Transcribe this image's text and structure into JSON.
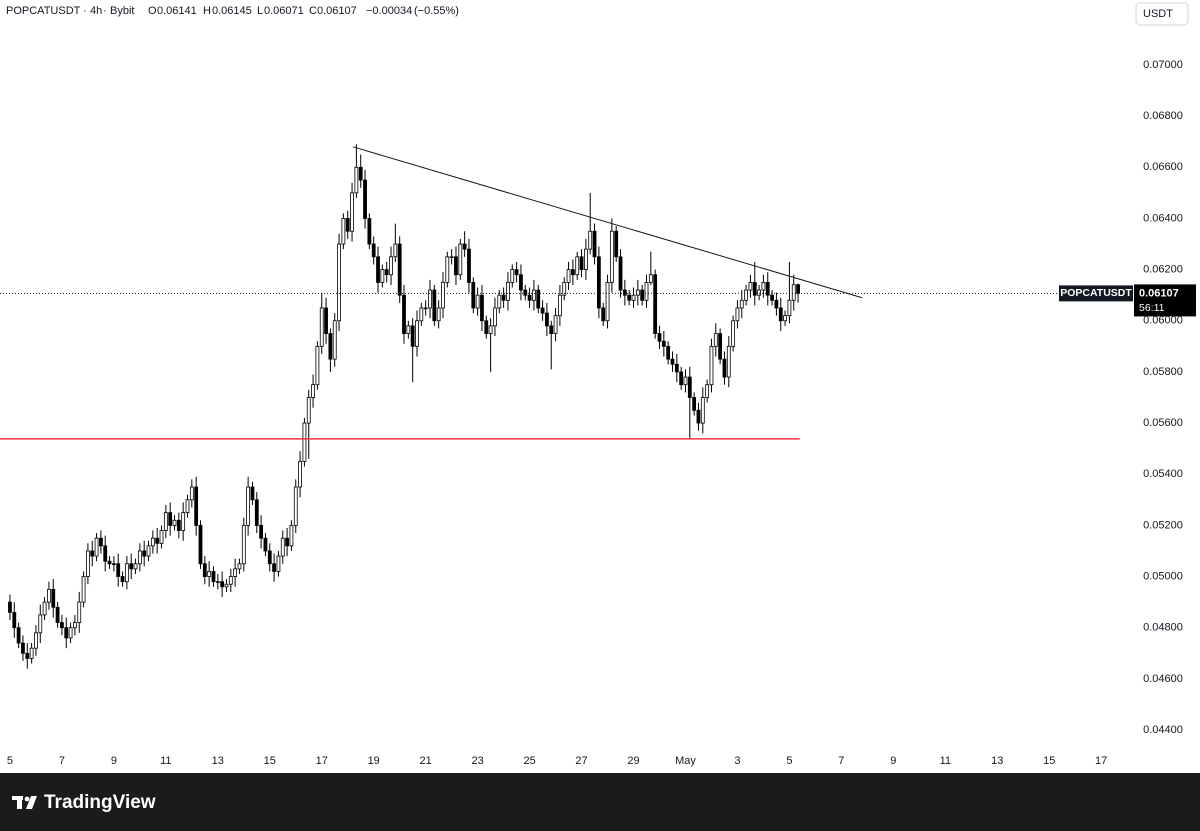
{
  "header": {
    "symbol": "POPCATUSDT",
    "interval": "4h",
    "exchange": "Bybit",
    "open_label": "O",
    "high_label": "H",
    "low_label": "L",
    "close_label": "C",
    "change": "−0.00034",
    "change_pct": "(−0.55%)",
    "currency": "USDT",
    "countdown": "56:11",
    "brand": "TradingView"
  },
  "chart_data": {
    "type": "candlestick",
    "title": "POPCATUSDT",
    "up_color": "#ffffff",
    "down_color": "#000000",
    "border_color": "#000000",
    "open": [
      0.049,
      0.0486,
      0.048,
      0.0474,
      0.047,
      0.0468,
      0.0472,
      0.0478,
      0.0485,
      0.049,
      0.0495,
      0.0488,
      0.0482,
      0.048,
      0.0476,
      0.048,
      0.0482,
      0.049,
      0.05,
      0.051,
      0.0508,
      0.0515,
      0.0512,
      0.0506,
      0.0505,
      0.0505,
      0.05,
      0.0498,
      0.0505,
      0.0503,
      0.0505,
      0.051,
      0.0508,
      0.0512,
      0.0515,
      0.0513,
      0.0518,
      0.0525,
      0.052,
      0.0522,
      0.0518,
      0.0525,
      0.053,
      0.0535,
      0.052,
      0.0505,
      0.05,
      0.0502,
      0.0498,
      0.0498,
      0.0496,
      0.0497,
      0.05,
      0.0503,
      0.0505,
      0.052,
      0.0535,
      0.053,
      0.052,
      0.0515,
      0.051,
      0.0505,
      0.0502,
      0.0508,
      0.0515,
      0.0512,
      0.052,
      0.0535,
      0.0545,
      0.056,
      0.057,
      0.0575,
      0.059,
      0.0605,
      0.0595,
      0.0585,
      0.06,
      0.063,
      0.064,
      0.0635,
      0.065,
      0.066,
      0.0655,
      0.064,
      0.063,
      0.0625,
      0.0615,
      0.062,
      0.0618,
      0.0625,
      0.063,
      0.061,
      0.0595,
      0.0598,
      0.059,
      0.06,
      0.0605,
      0.0605,
      0.0612,
      0.06,
      0.0605,
      0.0615,
      0.0625,
      0.0625,
      0.0618,
      0.063,
      0.0628,
      0.0615,
      0.0605,
      0.061,
      0.06,
      0.0595,
      0.0598,
      0.0605,
      0.061,
      0.0608,
      0.0615,
      0.062,
      0.0618,
      0.0612,
      0.061,
      0.0608,
      0.0612,
      0.0605,
      0.0603,
      0.0598,
      0.0595,
      0.0602,
      0.061,
      0.0615,
      0.062,
      0.0618,
      0.0625,
      0.062,
      0.0628,
      0.0635,
      0.0625,
      0.0605,
      0.06,
      0.0615,
      0.0635,
      0.0625,
      0.0612,
      0.061,
      0.0608,
      0.061,
      0.0612,
      0.0608,
      0.0615,
      0.0618,
      0.0595,
      0.0592,
      0.059,
      0.0585,
      0.0583,
      0.058,
      0.0575,
      0.0578,
      0.057,
      0.0565,
      0.056,
      0.057,
      0.0575,
      0.059,
      0.0595,
      0.0585,
      0.0578,
      0.059,
      0.06,
      0.0605,
      0.0608,
      0.0612,
      0.0615,
      0.061,
      0.0612,
      0.0615,
      0.061,
      0.0608,
      0.0605,
      0.06,
      0.0602,
      0.0608,
      0.06141
    ],
    "high": [
      0.0493,
      0.049,
      0.0482,
      0.0477,
      0.0474,
      0.0474,
      0.0481,
      0.0489,
      0.0492,
      0.0498,
      0.0499,
      0.049,
      0.0485,
      0.0484,
      0.0482,
      0.0485,
      0.0494,
      0.0502,
      0.0513,
      0.0514,
      0.0517,
      0.0518,
      0.0516,
      0.0508,
      0.0508,
      0.0509,
      0.0502,
      0.0508,
      0.0509,
      0.0507,
      0.0513,
      0.0514,
      0.0514,
      0.0518,
      0.0519,
      0.052,
      0.0528,
      0.0529,
      0.0524,
      0.0525,
      0.0529,
      0.0532,
      0.0538,
      0.0539,
      0.0522,
      0.0508,
      0.0506,
      0.0504,
      0.0501,
      0.0502,
      0.0499,
      0.0503,
      0.0507,
      0.0507,
      0.0523,
      0.0539,
      0.0537,
      0.0533,
      0.0524,
      0.0517,
      0.0513,
      0.0509,
      0.051,
      0.0518,
      0.0519,
      0.0522,
      0.0538,
      0.0549,
      0.0562,
      0.0573,
      0.0579,
      0.0592,
      0.0611,
      0.0609,
      0.0597,
      0.0603,
      0.0634,
      0.0642,
      0.0643,
      0.0654,
      0.0669,
      0.0665,
      0.0659,
      0.0642,
      0.0633,
      0.0629,
      0.0622,
      0.0623,
      0.0629,
      0.0638,
      0.0633,
      0.0614,
      0.06,
      0.0601,
      0.0604,
      0.0607,
      0.0608,
      0.0616,
      0.0614,
      0.0608,
      0.0619,
      0.0627,
      0.0628,
      0.0629,
      0.0632,
      0.0635,
      0.0632,
      0.0617,
      0.0613,
      0.0614,
      0.0602,
      0.0601,
      0.0609,
      0.0612,
      0.0613,
      0.0619,
      0.0622,
      0.0623,
      0.0622,
      0.0614,
      0.0613,
      0.0616,
      0.0614,
      0.0608,
      0.0607,
      0.06,
      0.0605,
      0.0614,
      0.0617,
      0.0623,
      0.0624,
      0.0627,
      0.0628,
      0.0632,
      0.065,
      0.0638,
      0.0629,
      0.0607,
      0.0618,
      0.064,
      0.0637,
      0.0628,
      0.0616,
      0.0612,
      0.0613,
      0.0616,
      0.0614,
      0.0618,
      0.0627,
      0.062,
      0.0598,
      0.0596,
      0.0592,
      0.0588,
      0.0587,
      0.0582,
      0.0581,
      0.0582,
      0.0572,
      0.0568,
      0.0574,
      0.0577,
      0.0593,
      0.0599,
      0.0597,
      0.0588,
      0.0594,
      0.0602,
      0.0608,
      0.0612,
      0.0614,
      0.0618,
      0.0623,
      0.0614,
      0.0618,
      0.0619,
      0.0612,
      0.0611,
      0.0609,
      0.0604,
      0.0623,
      0.0618,
      0.06145
    ],
    "low": [
      0.0483,
      0.0476,
      0.0472,
      0.0467,
      0.0464,
      0.0466,
      0.0469,
      0.0474,
      0.0483,
      0.0487,
      0.0484,
      0.048,
      0.0477,
      0.0472,
      0.0474,
      0.0477,
      0.0478,
      0.0488,
      0.0497,
      0.0504,
      0.0506,
      0.0509,
      0.0502,
      0.0503,
      0.0502,
      0.0496,
      0.0496,
      0.0495,
      0.0499,
      0.0501,
      0.0502,
      0.0504,
      0.0506,
      0.0509,
      0.0509,
      0.0511,
      0.0515,
      0.0516,
      0.0518,
      0.0515,
      0.0514,
      0.0523,
      0.0527,
      0.0516,
      0.0503,
      0.0497,
      0.0496,
      0.0496,
      0.0495,
      0.0492,
      0.0494,
      0.0494,
      0.0496,
      0.0501,
      0.0502,
      0.0516,
      0.0528,
      0.0517,
      0.0511,
      0.0508,
      0.0502,
      0.0498,
      0.05,
      0.0505,
      0.0508,
      0.051,
      0.0517,
      0.0531,
      0.0543,
      0.0546,
      0.0566,
      0.0573,
      0.0587,
      0.0591,
      0.058,
      0.0582,
      0.0596,
      0.0628,
      0.0632,
      0.0631,
      0.0648,
      0.0652,
      0.0636,
      0.0628,
      0.0622,
      0.0611,
      0.0613,
      0.0615,
      0.0614,
      0.0623,
      0.0607,
      0.0591,
      0.0593,
      0.0576,
      0.0586,
      0.0598,
      0.0602,
      0.0601,
      0.0598,
      0.0597,
      0.0601,
      0.0613,
      0.0622,
      0.0614,
      0.0616,
      0.0625,
      0.0611,
      0.0603,
      0.0602,
      0.0596,
      0.0593,
      0.058,
      0.0594,
      0.0603,
      0.0605,
      0.0604,
      0.0613,
      0.0615,
      0.0608,
      0.0608,
      0.0605,
      0.0604,
      0.0603,
      0.06,
      0.0594,
      0.0581,
      0.0592,
      0.0598,
      0.0608,
      0.0612,
      0.0614,
      0.0616,
      0.0617,
      0.0616,
      0.0626,
      0.0622,
      0.0601,
      0.0598,
      0.0597,
      0.0611,
      0.0623,
      0.0609,
      0.0606,
      0.0606,
      0.0605,
      0.0606,
      0.0606,
      0.0605,
      0.0614,
      0.0593,
      0.0589,
      0.0586,
      0.0583,
      0.058,
      0.0576,
      0.0573,
      0.0572,
      0.0554,
      0.0563,
      0.0557,
      0.0556,
      0.0568,
      0.0572,
      0.0586,
      0.0583,
      0.0575,
      0.0574,
      0.0588,
      0.0597,
      0.0601,
      0.0606,
      0.0609,
      0.0606,
      0.0608,
      0.0609,
      0.0606,
      0.0606,
      0.0602,
      0.0596,
      0.0598,
      0.0599,
      0.0604,
      0.06071
    ],
    "close": [
      0.0486,
      0.048,
      0.0474,
      0.047,
      0.0468,
      0.0472,
      0.0478,
      0.0485,
      0.049,
      0.0495,
      0.0488,
      0.0482,
      0.048,
      0.0476,
      0.048,
      0.0482,
      0.049,
      0.05,
      0.051,
      0.0508,
      0.0515,
      0.0512,
      0.0506,
      0.0505,
      0.0505,
      0.05,
      0.0498,
      0.0505,
      0.0503,
      0.0505,
      0.051,
      0.0508,
      0.0512,
      0.0515,
      0.0513,
      0.0518,
      0.0525,
      0.052,
      0.0522,
      0.0518,
      0.0525,
      0.053,
      0.0535,
      0.052,
      0.0505,
      0.05,
      0.0502,
      0.0498,
      0.0498,
      0.0496,
      0.0497,
      0.05,
      0.0503,
      0.0505,
      0.052,
      0.0535,
      0.053,
      0.052,
      0.0515,
      0.051,
      0.0505,
      0.0502,
      0.0508,
      0.0515,
      0.0512,
      0.052,
      0.0535,
      0.0545,
      0.056,
      0.057,
      0.0575,
      0.059,
      0.0605,
      0.0595,
      0.0585,
      0.06,
      0.063,
      0.064,
      0.0635,
      0.065,
      0.066,
      0.0655,
      0.064,
      0.063,
      0.0625,
      0.0615,
      0.062,
      0.0618,
      0.0625,
      0.063,
      0.061,
      0.0595,
      0.0598,
      0.059,
      0.06,
      0.0605,
      0.0605,
      0.0612,
      0.06,
      0.0605,
      0.0615,
      0.0625,
      0.0625,
      0.0618,
      0.063,
      0.0628,
      0.0615,
      0.0605,
      0.061,
      0.06,
      0.0595,
      0.0598,
      0.0605,
      0.061,
      0.0608,
      0.0615,
      0.062,
      0.0618,
      0.0612,
      0.061,
      0.0608,
      0.0612,
      0.0605,
      0.0603,
      0.0598,
      0.0595,
      0.0602,
      0.061,
      0.0615,
      0.062,
      0.0618,
      0.0625,
      0.062,
      0.0628,
      0.0635,
      0.0625,
      0.0605,
      0.06,
      0.0615,
      0.0635,
      0.0625,
      0.0612,
      0.061,
      0.0608,
      0.061,
      0.0612,
      0.0608,
      0.0615,
      0.0618,
      0.0595,
      0.0592,
      0.059,
      0.0585,
      0.0583,
      0.058,
      0.0575,
      0.0578,
      0.057,
      0.0565,
      0.056,
      0.057,
      0.0575,
      0.059,
      0.0595,
      0.0585,
      0.0578,
      0.059,
      0.06,
      0.0605,
      0.0608,
      0.0612,
      0.0615,
      0.061,
      0.0612,
      0.0615,
      0.061,
      0.0608,
      0.0605,
      0.06,
      0.0602,
      0.0608,
      0.06141,
      0.06107
    ],
    "xlim": [
      -2.3,
      257.5
    ],
    "xticks": [
      {
        "value": 0,
        "label": "5"
      },
      {
        "value": 12,
        "label": "7"
      },
      {
        "value": 24,
        "label": "9"
      },
      {
        "value": 36,
        "label": "11"
      },
      {
        "value": 48,
        "label": "13"
      },
      {
        "value": 60,
        "label": "15"
      },
      {
        "value": 72,
        "label": "17"
      },
      {
        "value": 84,
        "label": "19"
      },
      {
        "value": 96,
        "label": "21"
      },
      {
        "value": 108,
        "label": "23"
      },
      {
        "value": 120,
        "label": "25"
      },
      {
        "value": 132,
        "label": "27"
      },
      {
        "value": 144,
        "label": "29"
      },
      {
        "value": 156,
        "label": "May"
      },
      {
        "value": 168,
        "label": "3"
      },
      {
        "value": 180,
        "label": "5"
      },
      {
        "value": 192,
        "label": "7"
      },
      {
        "value": 204,
        "label": "9"
      },
      {
        "value": 216,
        "label": "11"
      },
      {
        "value": 228,
        "label": "13"
      },
      {
        "value": 240,
        "label": "15"
      },
      {
        "value": 252,
        "label": "17"
      }
    ],
    "ylim": [
      0.04232,
      0.07254
    ],
    "yticks": [
      {
        "value": 0.044,
        "label": "0.04400"
      },
      {
        "value": 0.046,
        "label": "0.04600"
      },
      {
        "value": 0.048,
        "label": "0.04800"
      },
      {
        "value": 0.05,
        "label": "0.05000"
      },
      {
        "value": 0.052,
        "label": "0.05200"
      },
      {
        "value": 0.054,
        "label": "0.05400"
      },
      {
        "value": 0.056,
        "label": "0.05600"
      },
      {
        "value": 0.058,
        "label": "0.05800"
      },
      {
        "value": 0.06,
        "label": "0.06000"
      },
      {
        "value": 0.062,
        "label": "0.06200"
      },
      {
        "value": 0.064,
        "label": "0.06400"
      },
      {
        "value": 0.066,
        "label": "0.06600"
      },
      {
        "value": 0.068,
        "label": "0.06800"
      },
      {
        "value": 0.07,
        "label": "0.07000"
      }
    ],
    "grid": false,
    "drawings": [
      {
        "type": "trendline",
        "x": [
          79.2,
          196.8
        ],
        "y": [
          0.0668,
          0.0609
        ],
        "color": "#131722"
      },
      {
        "type": "horizontal",
        "x": [
          -2.3,
          182.4
        ],
        "y": [
          0.05538,
          0.05538
        ],
        "color": "#f23645"
      }
    ]
  }
}
